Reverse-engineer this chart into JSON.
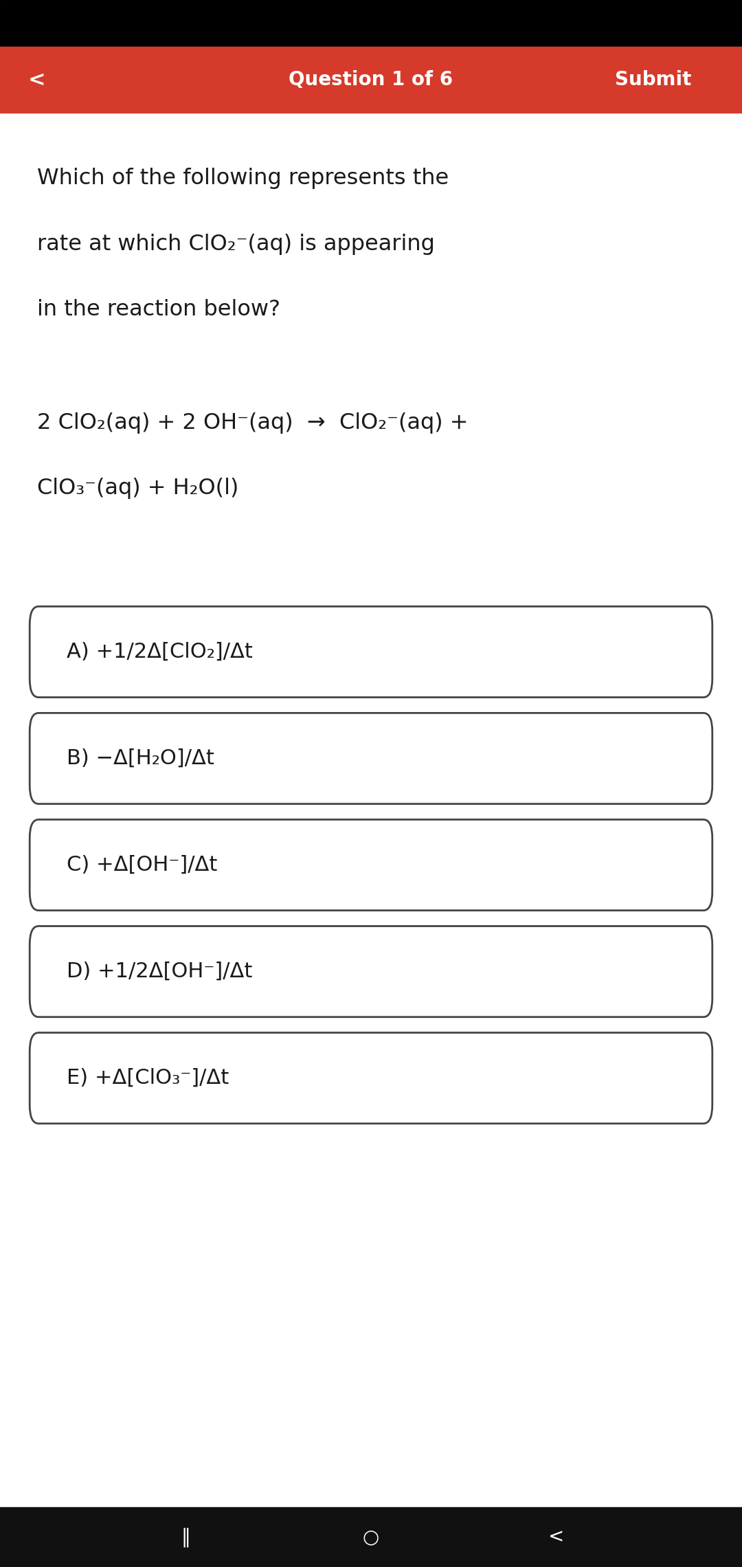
{
  "header_color": "#D63A2A",
  "header_text": "Question 1 of 6",
  "header_submit": "Submit",
  "header_back": "<",
  "body_bg": "#FFFFFF",
  "question_text_line1": "Which of the following represents the",
  "question_text_line2": "rate at which ClO₂⁻(aq) is appearing",
  "question_text_line3": "in the reaction below?",
  "reaction_line1": "2 ClO₂(aq) + 2 OH⁻(aq)  →  ClO₂⁻(aq) +",
  "reaction_line2": "ClO₃⁻(aq) + H₂O(l)",
  "options": [
    "A) +1/2Δ[ClO₂]/Δt",
    "B) −Δ[H₂O]/Δt",
    "C) +Δ[OH⁻]/Δt",
    "D) +1/2Δ[OH⁻]/Δt",
    "E) +Δ[ClO₃⁻]/Δt"
  ],
  "text_color": "#1a1a1a",
  "option_bg": "#FFFFFF",
  "option_border": "#444444",
  "footer_icons": [
    "‖",
    "○",
    "<"
  ]
}
